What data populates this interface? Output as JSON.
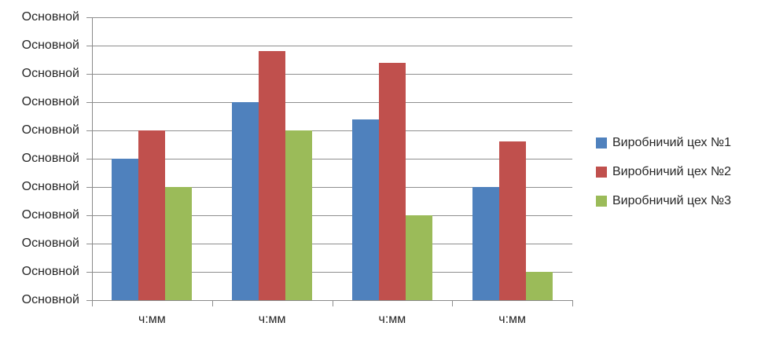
{
  "chart_data": {
    "type": "bar",
    "title": "",
    "xlabel": "",
    "ylabel": "",
    "categories": [
      "ч:мм",
      "ч:мм",
      "ч:мм",
      "ч:мм"
    ],
    "series": [
      {
        "name": "Виробничий цех №1",
        "color": "#4F81BD",
        "values": [
          5,
          7,
          6.4,
          4
        ]
      },
      {
        "name": "Виробничий цех №2",
        "color": "#C0504D",
        "values": [
          6,
          8.8,
          8.4,
          5.6
        ]
      },
      {
        "name": "Виробничий цех №3",
        "color": "#9BBB59",
        "values": [
          4,
          6,
          3,
          1
        ]
      }
    ],
    "ylim": [
      0,
      10
    ],
    "value_unit": "gridline units (y-axis shows placeholder text)",
    "y_tick_labels": [
      "Основной",
      "Основной",
      "Основной",
      "Основной",
      "Основной",
      "Основной",
      "Основной",
      "Основной",
      "Основной",
      "Основной",
      "Основной"
    ],
    "grid": true,
    "legend_position": "right"
  }
}
